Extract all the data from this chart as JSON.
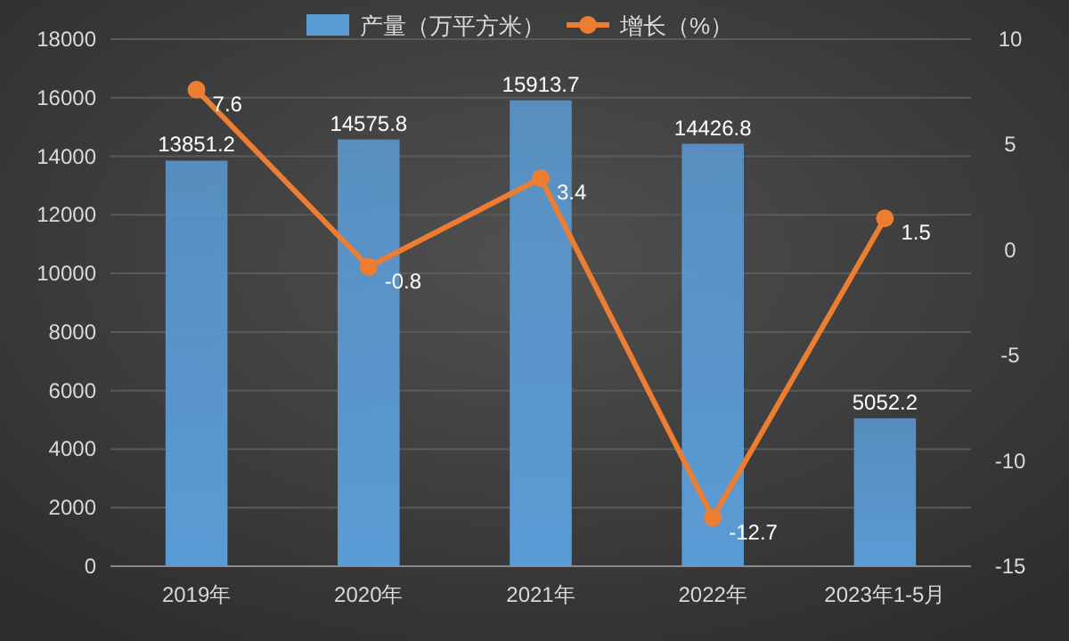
{
  "chart_data": {
    "type": "bar",
    "categories": [
      "2019年",
      "2020年",
      "2021年",
      "2022年",
      "2023年1-5月"
    ],
    "series": [
      {
        "name": "产量（万平方米）",
        "color": "#5b9bd5",
        "values": [
          13851.2,
          14575.8,
          15913.7,
          14426.8,
          5052.2
        ]
      },
      {
        "name": "增长（%）",
        "type": "line",
        "axis": "y2",
        "color": "#ed7d31",
        "values": [
          7.6,
          -0.8,
          3.4,
          -12.7,
          1.5
        ]
      }
    ],
    "ylim": [
      0,
      18000
    ],
    "yticks": [
      0,
      2000,
      4000,
      6000,
      8000,
      10000,
      12000,
      14000,
      16000,
      18000
    ],
    "y2lim": [
      -15,
      10
    ],
    "y2ticks": [
      -15,
      -10,
      -5,
      0,
      5,
      10
    ],
    "grid": "y",
    "legend": "top",
    "marker": "circle",
    "data_labels": true
  }
}
